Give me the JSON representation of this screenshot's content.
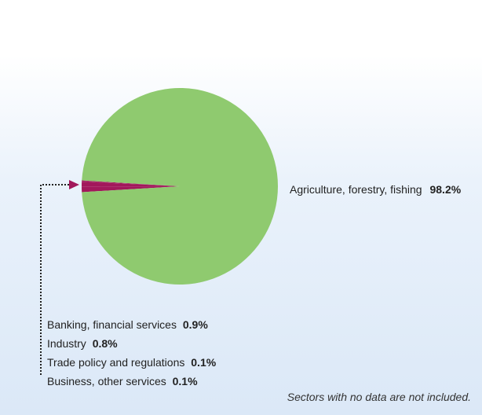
{
  "chart_data": {
    "type": "pie",
    "slices": [
      {
        "label": "Agriculture, forestry, fishing",
        "value": 98.2,
        "value_text": "98.2%",
        "color": "#8fca6f"
      },
      {
        "label": "Banking, financial services",
        "value": 0.9,
        "value_text": "0.9%",
        "color": "#a2185b"
      },
      {
        "label": "Industry",
        "value": 0.8,
        "value_text": "0.8%",
        "color": "#a2185b"
      },
      {
        "label": "Trade policy and regulations",
        "value": 0.1,
        "value_text": "0.1%",
        "color": "#a2185b"
      },
      {
        "label": "Business, other services",
        "value": 0.1,
        "value_text": "0.1%",
        "color": "#a2185b"
      }
    ],
    "note": "Sectors with no data are not included."
  }
}
